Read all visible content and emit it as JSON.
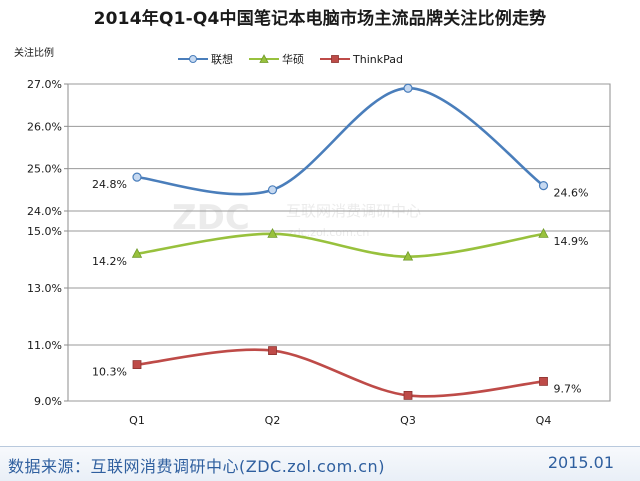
{
  "title": "2014年Q1-Q4中国笔记本电脑市场主流品牌关注比例走势",
  "footer": {
    "source": "数据来源：互联网消费调研中心(ZDC.zol.com.cn)",
    "date": "2015.01"
  },
  "watermark": {
    "logo": "ZDC",
    "name": "互联网消费调研中心",
    "url": "zdc.zol.com.cn"
  },
  "colors": {
    "lenovo": "#4a7ebb",
    "asus": "#98c13d",
    "thinkpad": "#be4b48"
  },
  "chart_data": {
    "type": "line",
    "ylabel": "关注比例",
    "categories": [
      "Q1",
      "Q2",
      "Q3",
      "Q4"
    ],
    "panels": [
      {
        "series": [
          "联想"
        ],
        "ylim": [
          24.0,
          27.0
        ],
        "yticks": [
          "24.0%",
          "25.0%",
          "26.0%",
          "27.0%"
        ]
      },
      {
        "series": [
          "华硕"
        ],
        "ylim": [
          13.0,
          15.0
        ],
        "yticks": [
          "13.0%",
          "15.0%"
        ]
      },
      {
        "series": [
          "ThinkPad"
        ],
        "ylim": [
          9.0,
          11.0
        ],
        "yticks": [
          "9.0%",
          "11.0%"
        ]
      }
    ],
    "series": [
      {
        "name": "联想",
        "key": "lenovo",
        "marker": "circle",
        "values": [
          24.8,
          24.5,
          26.9,
          24.6
        ],
        "labels": [
          "24.8%",
          "",
          "",
          "24.6%"
        ]
      },
      {
        "name": "华硕",
        "key": "asus",
        "marker": "triangle",
        "values": [
          14.2,
          14.9,
          14.1,
          14.9
        ],
        "labels": [
          "14.2%",
          "",
          "",
          "14.9%"
        ]
      },
      {
        "name": "ThinkPad",
        "key": "thinkpad",
        "marker": "square",
        "values": [
          10.3,
          10.8,
          9.2,
          9.7
        ],
        "labels": [
          "10.3%",
          "",
          "",
          "9.7%"
        ]
      }
    ],
    "grid": true,
    "legend": "top"
  }
}
